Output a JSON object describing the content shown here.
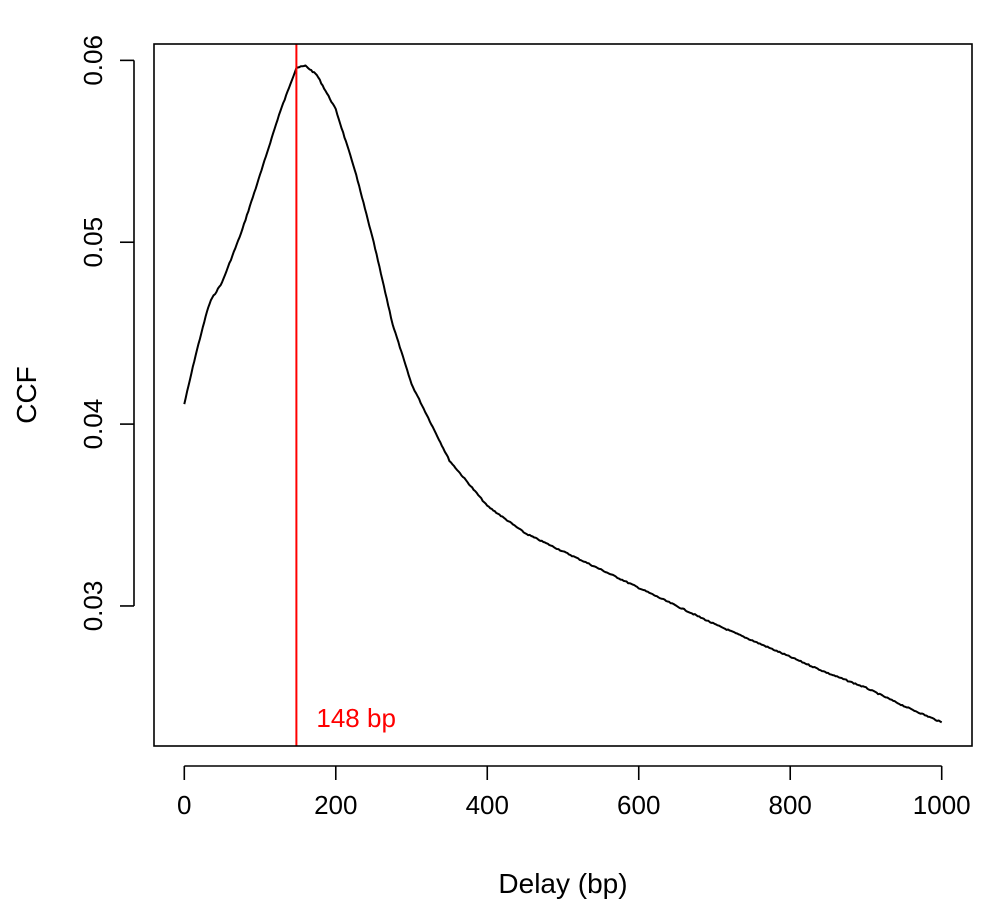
{
  "chart_data": {
    "type": "line",
    "title": "",
    "xlabel": "Delay (bp)",
    "ylabel": "CCF",
    "xlim": [
      -40,
      1040
    ],
    "ylim": [
      0.0223,
      0.0609
    ],
    "x_ticks": [
      0,
      200,
      400,
      600,
      800,
      1000
    ],
    "x_tick_labels": [
      "0",
      "200",
      "400",
      "600",
      "800",
      "1000"
    ],
    "y_ticks": [
      0.03,
      0.04,
      0.05,
      0.06
    ],
    "y_tick_labels": [
      "0.03",
      "0.04",
      "0.05",
      "0.06"
    ],
    "grid": false,
    "series": [
      {
        "color": "#000000",
        "x": [
          0,
          15,
          30,
          35,
          50,
          75,
          100,
          125,
          140,
          148,
          160,
          175,
          200,
          225,
          250,
          275,
          300,
          350,
          400,
          450,
          500,
          550,
          600,
          650,
          700,
          750,
          800,
          850,
          900,
          950,
          1000
        ],
        "y": [
          0.0411,
          0.0438,
          0.0462,
          0.0468,
          0.0478,
          0.0505,
          0.0537,
          0.057,
          0.0587,
          0.0596,
          0.0597,
          0.0592,
          0.0573,
          0.054,
          0.05,
          0.0455,
          0.0422,
          0.038,
          0.0355,
          0.034,
          0.033,
          0.032,
          0.031,
          0.03,
          0.029,
          0.0281,
          0.0272,
          0.0263,
          0.0255,
          0.0245,
          0.0236
        ]
      }
    ],
    "vline": {
      "x": 148,
      "color": "#ff0000",
      "label": "148 bp"
    }
  }
}
